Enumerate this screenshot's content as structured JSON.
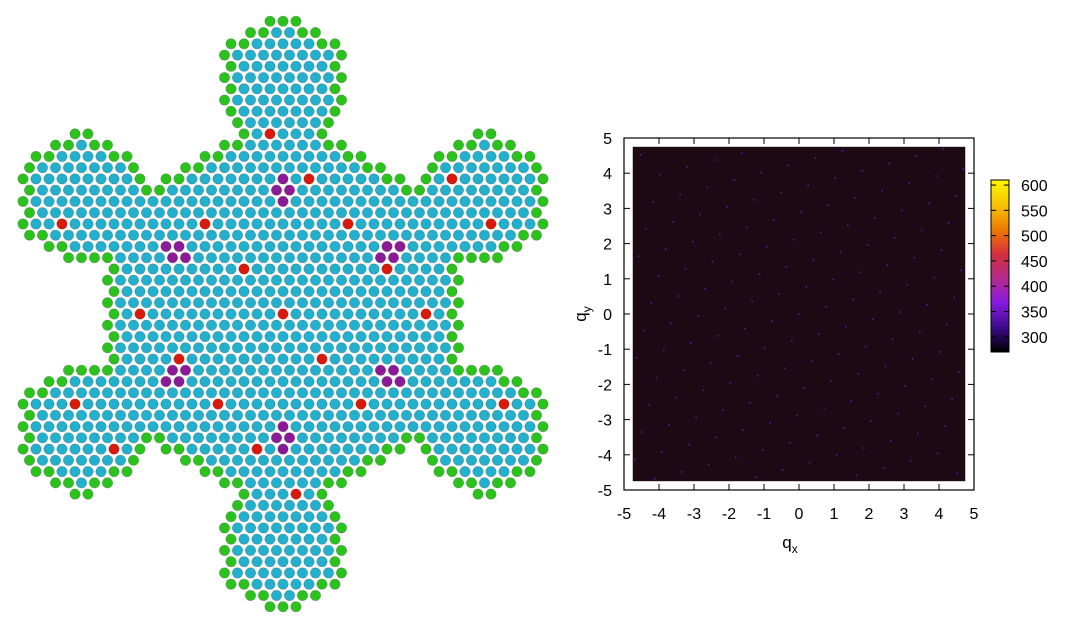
{
  "figure": {
    "left_panel": "molecular-lattice-render",
    "atom_colors": {
      "bulk": "#22b0cc",
      "edge": "#2cc21e",
      "defect_red": "#d81a0c",
      "defect_purple": "#8a1a96",
      "bond": "#f2f2f2"
    }
  },
  "chart_data": {
    "type": "heatmap",
    "title": "",
    "xlabel": "q",
    "xlabel_sub": "x",
    "ylabel": "q",
    "ylabel_sub": "y",
    "xlim": [
      -5,
      5
    ],
    "ylim": [
      -5,
      5
    ],
    "xticks": [
      -5,
      -4,
      -3,
      -2,
      -1,
      0,
      1,
      2,
      3,
      4,
      5
    ],
    "yticks": [
      -5,
      -4,
      -3,
      -2,
      -1,
      0,
      1,
      2,
      3,
      4,
      5
    ],
    "data_extent": [
      -4.75,
      4.75
    ],
    "background_value": 270,
    "colorbar": {
      "range": [
        270,
        610
      ],
      "ticks": [
        300,
        350,
        400,
        450,
        500,
        550,
        600
      ],
      "colors": [
        "#000000",
        "#3c0a8a",
        "#8a1ae0",
        "#b32a8a",
        "#d6303c",
        "#ee7b00",
        "#f5c400",
        "#fff400"
      ]
    },
    "peaks": {
      "description_value": 320,
      "lattice_a": [
        0.8,
        0.0
      ],
      "lattice_b": [
        0.4,
        0.6928
      ],
      "rotation_deg": 15
    }
  }
}
